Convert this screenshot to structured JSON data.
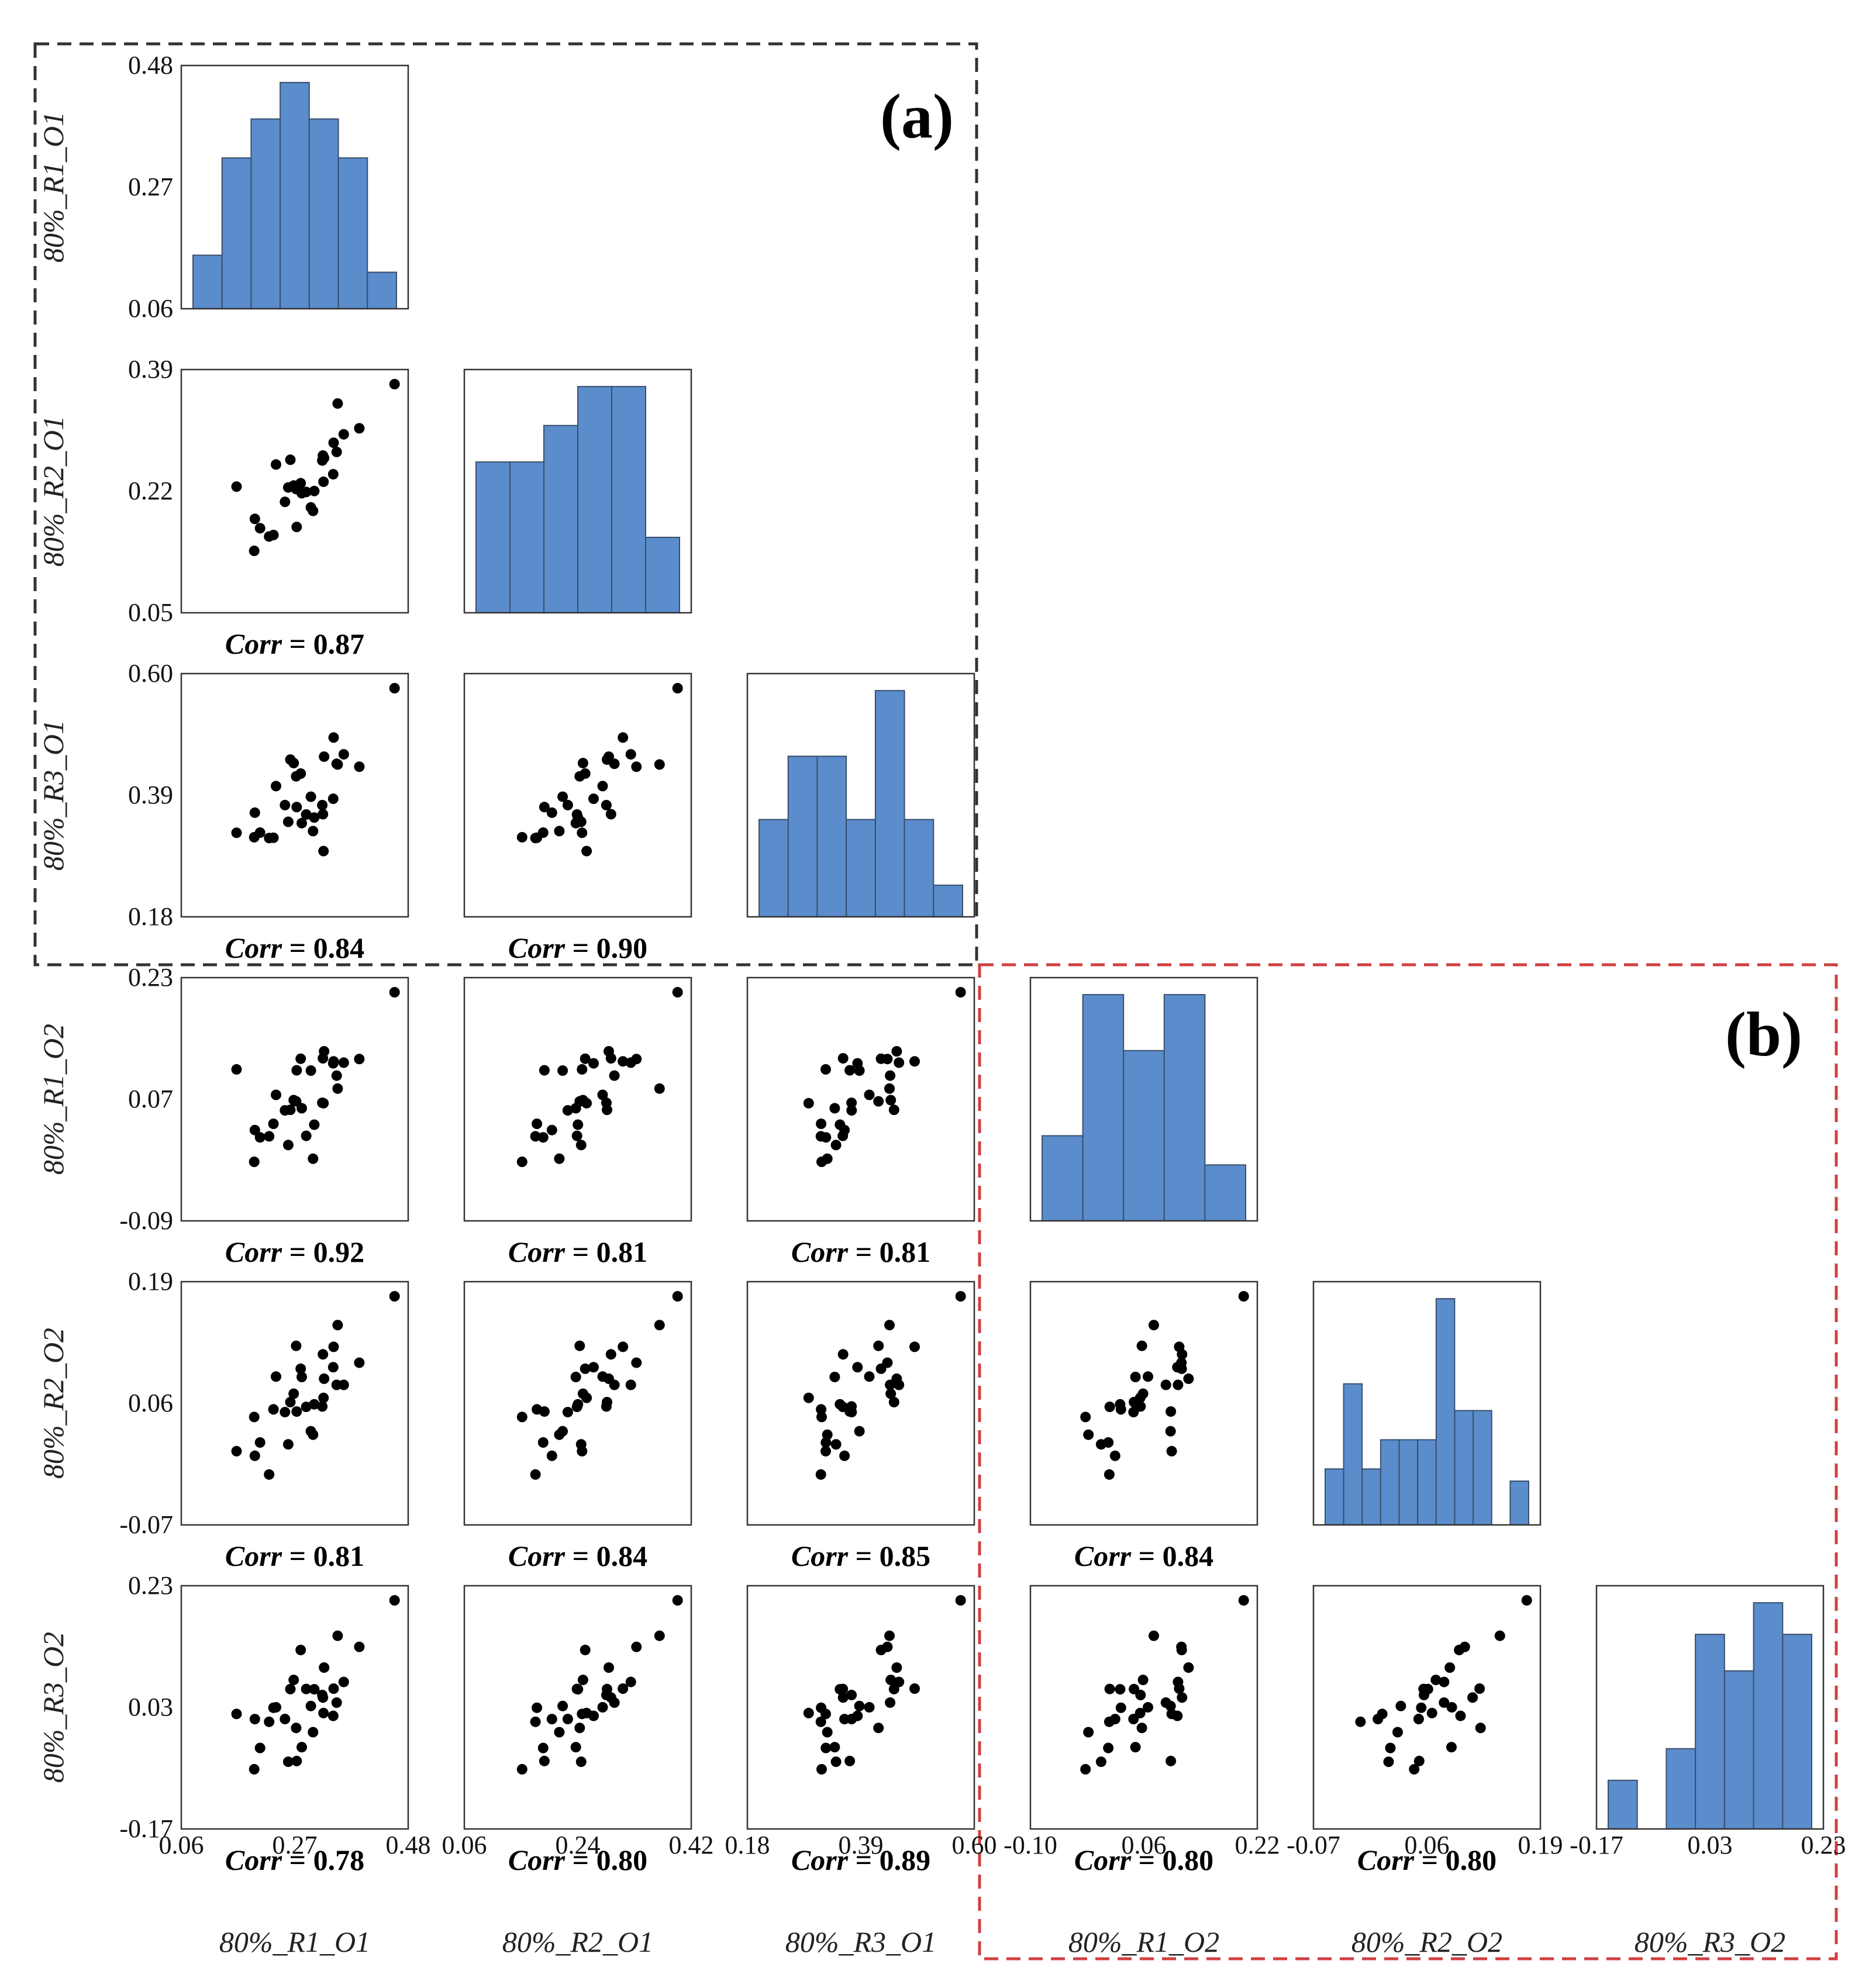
{
  "chart_data": {
    "type": "scatter-matrix",
    "variables": [
      "80%_R1_O1",
      "80%_R2_O1",
      "80%_R3_O1",
      "80%_R1_O2",
      "80%_R2_O2",
      "80%_R3_O2"
    ],
    "ticks": [
      [
        "0.06",
        "0.27",
        "0.48"
      ],
      [
        "0.05",
        "0.22",
        "0.39"
      ],
      [
        "0.18",
        "0.39",
        "0.60"
      ],
      [
        "-0.09",
        "0.07",
        "0.23"
      ],
      [
        "-0.07",
        "0.06",
        "0.19"
      ],
      [
        "-0.17",
        "0.03",
        "0.23"
      ]
    ],
    "bottom_ticks": [
      [
        "0.06",
        "0.27",
        "0.48"
      ],
      [
        "0.06",
        "0.24",
        "0.42"
      ],
      [
        "0.18",
        "0.39",
        "0.60"
      ],
      [
        "-0.10",
        "0.06",
        "0.22"
      ],
      [
        "-0.07",
        "0.06",
        "0.19"
      ],
      [
        "-0.17",
        "0.03",
        "0.23"
      ]
    ],
    "ranges": [
      [
        0.06,
        0.48
      ],
      [
        0.06,
        0.42
      ],
      [
        0.18,
        0.6
      ],
      [
        -0.1,
        0.22
      ],
      [
        -0.07,
        0.19
      ],
      [
        -0.17,
        0.23
      ]
    ],
    "correlations": {
      "1_0": "Corr = 0.87",
      "2_0": "Corr = 0.84",
      "2_1": "Corr = 0.90",
      "3_0": "Corr = 0.92",
      "3_1": "Corr = 0.81",
      "3_2": "Corr = 0.81",
      "4_0": "Corr = 0.81",
      "4_1": "Corr = 0.84",
      "4_2": "Corr = 0.85",
      "4_3": "Corr = 0.84",
      "5_0": "Corr = 0.78",
      "5_1": "Corr = 0.80",
      "5_2": "Corr = 0.89",
      "5_3": "Corr = 0.80",
      "5_4": "Corr = 0.80"
    },
    "histograms": [
      [
        0.22,
        0.62,
        0.78,
        0.93,
        0.78,
        0.62,
        0.15
      ],
      [
        0.62,
        0.62,
        0.77,
        0.93,
        0.93,
        0.31
      ],
      [
        0.4,
        0.66,
        0.66,
        0.4,
        0.93,
        0.4,
        0.13
      ],
      [
        0.35,
        0.93,
        0.7,
        0.93,
        0.23
      ],
      [
        0.23,
        0.58,
        0.23,
        0.35,
        0.35,
        0.35,
        0.93,
        0.47,
        0.47,
        0.0,
        0.18
      ],
      [
        0.2,
        0.0,
        0.33,
        0.8,
        0.65,
        0.93,
        0.8
      ]
    ],
    "panel_labels": [
      "(a)",
      "(b)"
    ],
    "colors": {
      "bar": "#5b8ccc",
      "frame_a": "#333333",
      "frame_b": "#d04040"
    }
  }
}
